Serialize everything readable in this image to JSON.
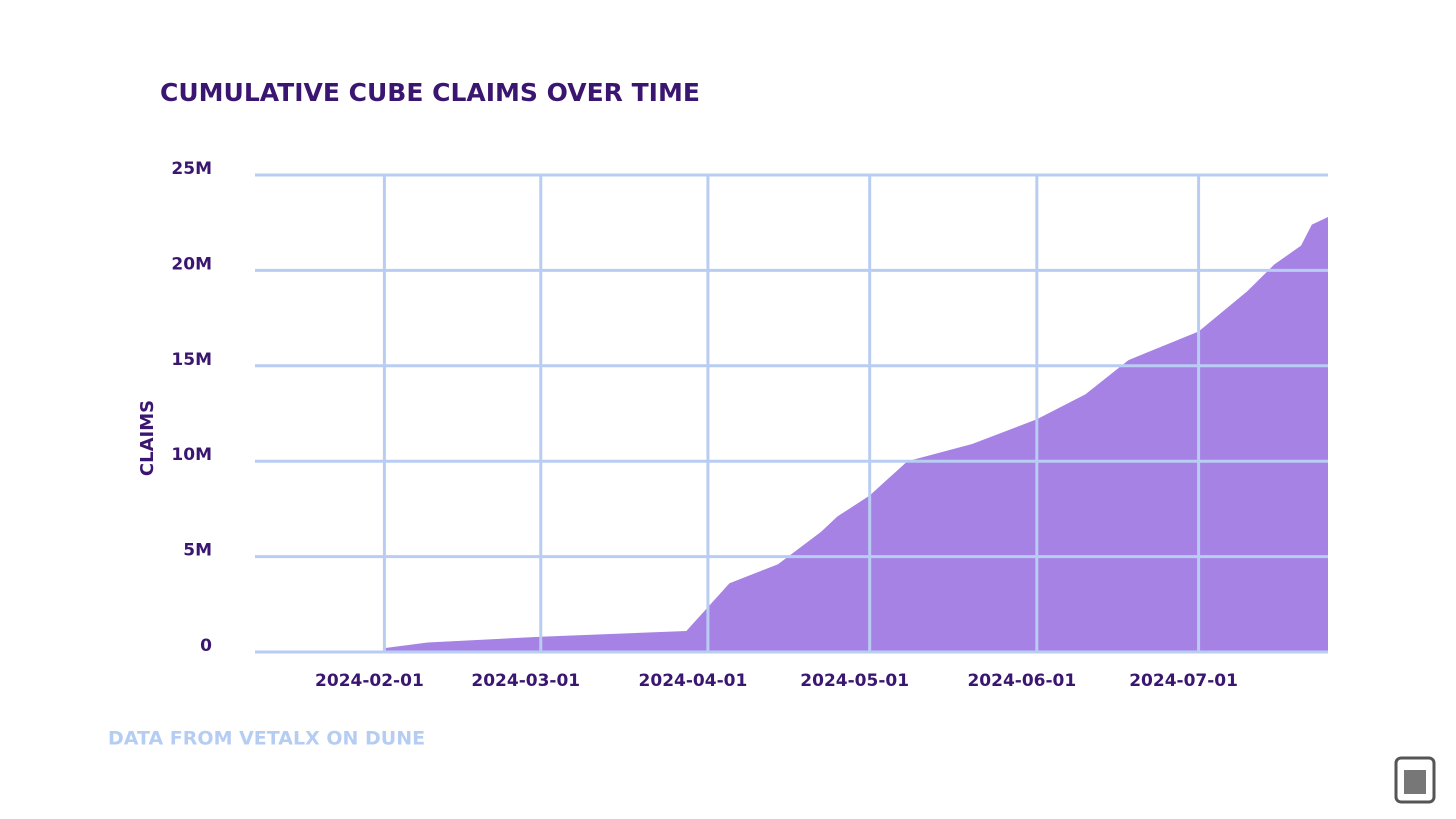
{
  "chart_data": {
    "type": "area",
    "title": "CUMULATIVE CUBE CLAIMS OVER TIME",
    "y_label": "CLAIMS",
    "source": "DATA FROM VETALX ON DUNE",
    "x": [
      "2024-02-01",
      "2024-02-09",
      "2024-03-01",
      "2024-03-28",
      "2024-04-05",
      "2024-04-14",
      "2024-04-22",
      "2024-04-25",
      "2024-05-01",
      "2024-05-08",
      "2024-05-20",
      "2024-06-01",
      "2024-06-10",
      "2024-06-18",
      "2024-07-01",
      "2024-07-10",
      "2024-07-15",
      "2024-07-20",
      "2024-07-22",
      "2024-07-25"
    ],
    "series": [
      {
        "name": "CLAIMS",
        "color": "#a582e3",
        "values": [
          200000,
          500000,
          800000,
          1100000,
          3600000,
          4600000,
          6300000,
          7100000,
          8200000,
          10000000,
          10900000,
          12200000,
          13500000,
          15300000,
          16800000,
          18900000,
          20300000,
          21300000,
          22400000,
          22800000
        ]
      }
    ],
    "xlim": [
      "2024-01-08",
      "2024-07-25"
    ],
    "xticks": [
      "2024-02-01",
      "2024-03-01",
      "2024-04-01",
      "2024-05-01",
      "2024-06-01",
      "2024-07-01"
    ],
    "ylim": [
      0,
      25000000
    ],
    "yticks": [
      0,
      {
        "value": 5000000,
        "label": "5M"
      },
      {
        "value": 10000000,
        "label": "10M"
      },
      {
        "value": 15000000,
        "label": "15M"
      },
      {
        "value": 20000000,
        "label": "20M"
      },
      {
        "value": 25000000,
        "label": "25M"
      }
    ],
    "grid": true,
    "grid_color": "#b9cdf3"
  }
}
